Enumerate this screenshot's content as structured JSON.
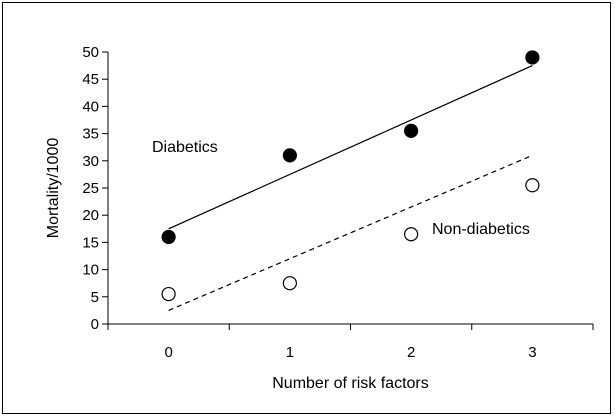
{
  "chart_data": {
    "type": "scatter",
    "xlabel": "Number of risk factors",
    "ylabel": "Mortality/1000",
    "x": [
      0,
      1,
      2,
      3
    ],
    "xlim": [
      -0.5,
      3.5
    ],
    "ylim": [
      0,
      50
    ],
    "yticks": [
      0,
      5,
      10,
      15,
      20,
      25,
      30,
      35,
      40,
      45,
      50
    ],
    "xticks": [
      0,
      1,
      2,
      3
    ],
    "grid": false,
    "series": [
      {
        "name": "Diabetics",
        "values": [
          16,
          31,
          35.5,
          49
        ],
        "marker": "filled-circle",
        "trendline": {
          "style": "solid",
          "from": [
            0,
            17.5
          ],
          "to": [
            3,
            47.5
          ]
        }
      },
      {
        "name": "Non-diabetics",
        "values": [
          5.5,
          7.5,
          16.5,
          25.5
        ],
        "marker": "open-circle",
        "trendline": {
          "style": "dashed",
          "from": [
            0,
            2.5
          ],
          "to": [
            3,
            31
          ]
        }
      }
    ]
  }
}
